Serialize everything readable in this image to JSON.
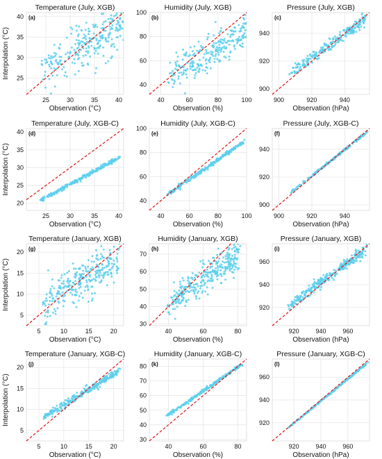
{
  "colors": {
    "points": "#5ccfec",
    "reference_line": "#e01010",
    "grid": "#e6e6e6",
    "frame": "#d9d9d9"
  },
  "chart_data": [
    {
      "panel": "(a)",
      "type": "scatter",
      "title": "Temperature (July, XGB)",
      "xlabel": "Observation (°C)",
      "ylabel": "Interpolation (°C)",
      "xlim": [
        21,
        41
      ],
      "ylim": [
        21,
        41
      ],
      "xticks": [
        25,
        30,
        35,
        40
      ],
      "yticks": [
        25,
        30,
        35,
        40
      ],
      "reference_line": "y = x",
      "grid": true,
      "gen": {
        "trend": [
          21,
          25.5,
          41,
          38
        ],
        "noise": 2.6,
        "n": 260
      }
    },
    {
      "panel": "(b)",
      "type": "scatter",
      "title": "Humidity (July, XGB)",
      "xlabel": "Observation (%)",
      "ylabel": "",
      "xlim": [
        32,
        100
      ],
      "ylim": [
        32,
        100
      ],
      "xticks": [
        40,
        60,
        80,
        100
      ],
      "yticks": [
        40,
        60,
        80,
        100
      ],
      "reference_line": "y = x",
      "grid": true,
      "gen": {
        "trend": [
          35,
          38,
          100,
          86
        ],
        "noise": 7,
        "n": 260
      }
    },
    {
      "panel": "(c)",
      "type": "scatter",
      "title": "Pressure (July, XGB)",
      "xlabel": "Observation (hPa)",
      "ylabel": "",
      "xlim": [
        896,
        955
      ],
      "ylim": [
        896,
        955
      ],
      "xticks": [
        900,
        920,
        940
      ],
      "yticks": [
        900,
        920,
        940
      ],
      "reference_line": "y = x",
      "grid": true,
      "gen": {
        "trend": [
          898,
          903,
          953,
          951
        ],
        "noise": 2.2,
        "n": 240
      }
    },
    {
      "panel": "(d)",
      "type": "scatter",
      "title": "Temperature (July, XGB-C)",
      "xlabel": "Observation (°C)",
      "ylabel": "Interpolation (°C)",
      "xlim": [
        21,
        41
      ],
      "ylim": [
        18,
        41
      ],
      "xticks": [
        25,
        30,
        35,
        40
      ],
      "yticks": [
        20,
        25,
        30,
        35,
        40
      ],
      "reference_line": "y = x",
      "grid": true,
      "gen": {
        "trend": [
          21,
          18.6,
          40,
          32.8
        ],
        "noise": 0.3,
        "n": 240
      }
    },
    {
      "panel": "(e)",
      "type": "scatter",
      "title": "Humidity (July, XGB-C)",
      "xlabel": "Observation (%)",
      "ylabel": "",
      "xlim": [
        32,
        100
      ],
      "ylim": [
        32,
        100
      ],
      "xticks": [
        40,
        60,
        80,
        100
      ],
      "yticks": [
        40,
        60,
        80,
        100
      ],
      "reference_line": "y = x",
      "grid": true,
      "gen": {
        "trend": [
          35,
          37,
          98,
          89
        ],
        "noise": 0.9,
        "n": 240
      }
    },
    {
      "panel": "(f)",
      "type": "scatter",
      "title": "Pressure (July, XGB-C)",
      "xlabel": "Observation (hPa)",
      "ylabel": "",
      "xlim": [
        896,
        955
      ],
      "ylim": [
        896,
        955
      ],
      "xticks": [
        900,
        920,
        940
      ],
      "yticks": [
        900,
        920,
        940
      ],
      "reference_line": "y = x",
      "grid": true,
      "gen": {
        "trend": [
          899,
          901,
          953,
          952
        ],
        "noise": 0.4,
        "n": 220
      }
    },
    {
      "panel": "(g)",
      "type": "scatter",
      "title": "Temperature (January, XGB)",
      "xlabel": "Observation (°C)",
      "ylabel": "Interpolation (°C)",
      "xlim": [
        2.5,
        22
      ],
      "ylim": [
        2.5,
        22
      ],
      "xticks": [
        5,
        10,
        15,
        20
      ],
      "yticks": [
        5,
        10,
        15,
        20
      ],
      "reference_line": "y = x",
      "grid": true,
      "gen": {
        "trend": [
          3,
          5,
          21,
          19
        ],
        "noise": 2.2,
        "n": 300
      }
    },
    {
      "panel": "(h)",
      "type": "scatter",
      "title": "Humidity (January, XGB)",
      "xlabel": "Observation (%)",
      "ylabel": "",
      "xlim": [
        29,
        85
      ],
      "ylim": [
        29,
        76
      ],
      "xticks": [
        40,
        60,
        80
      ],
      "yticks": [
        30,
        40,
        50,
        60,
        70
      ],
      "reference_line": "y = x",
      "grid": true,
      "gen": {
        "trend": [
          32,
          36,
          82,
          72
        ],
        "noise": 4.5,
        "n": 320
      }
    },
    {
      "panel": "(i)",
      "type": "scatter",
      "title": "Pressure (January, XGB)",
      "xlabel": "Observation (hPa)",
      "ylabel": "",
      "xlim": [
        904,
        976
      ],
      "ylim": [
        904,
        976
      ],
      "xticks": [
        920,
        940,
        960
      ],
      "yticks": [
        920,
        940,
        960
      ],
      "reference_line": "y = x",
      "grid": true,
      "gen": {
        "trend": [
          906,
          912,
          974,
          972
        ],
        "noise": 2.3,
        "n": 300
      }
    },
    {
      "panel": "(j)",
      "type": "scatter",
      "title": "Temperature (January, XGB-C)",
      "xlabel": "Observation (°C)",
      "ylabel": "Interpolation (°C)",
      "xlim": [
        2.5,
        22
      ],
      "ylim": [
        2.5,
        22
      ],
      "xticks": [
        5,
        10,
        15,
        20
      ],
      "yticks": [
        5,
        10,
        15,
        20
      ],
      "reference_line": "y = x",
      "grid": true,
      "gen": {
        "trend": [
          3,
          6,
          21,
          19
        ],
        "noise": 0.45,
        "n": 260
      }
    },
    {
      "panel": "(k)",
      "type": "scatter",
      "title": "Humidity (January, XGB-C)",
      "xlabel": "Observation (%)",
      "ylabel": "",
      "xlim": [
        29,
        85
      ],
      "ylim": [
        29,
        85
      ],
      "xticks": [
        40,
        60,
        80
      ],
      "yticks": [
        30,
        40,
        50,
        60,
        70,
        80
      ],
      "reference_line": "y = x",
      "grid": true,
      "gen": {
        "trend": [
          31,
          39.5,
          82,
          81
        ],
        "noise": 0.5,
        "n": 240
      }
    },
    {
      "panel": "(l)",
      "type": "scatter",
      "title": "Pressure (January, XGB-C)",
      "xlabel": "Observation (hPa)",
      "ylabel": "",
      "xlim": [
        904,
        976
      ],
      "ylim": [
        904,
        976
      ],
      "xticks": [
        920,
        940,
        960
      ],
      "yticks": [
        920,
        940,
        960
      ],
      "reference_line": "y = x",
      "grid": true,
      "gen": {
        "trend": [
          906,
          906,
          974,
          972
        ],
        "noise": 0.35,
        "n": 220
      }
    }
  ]
}
